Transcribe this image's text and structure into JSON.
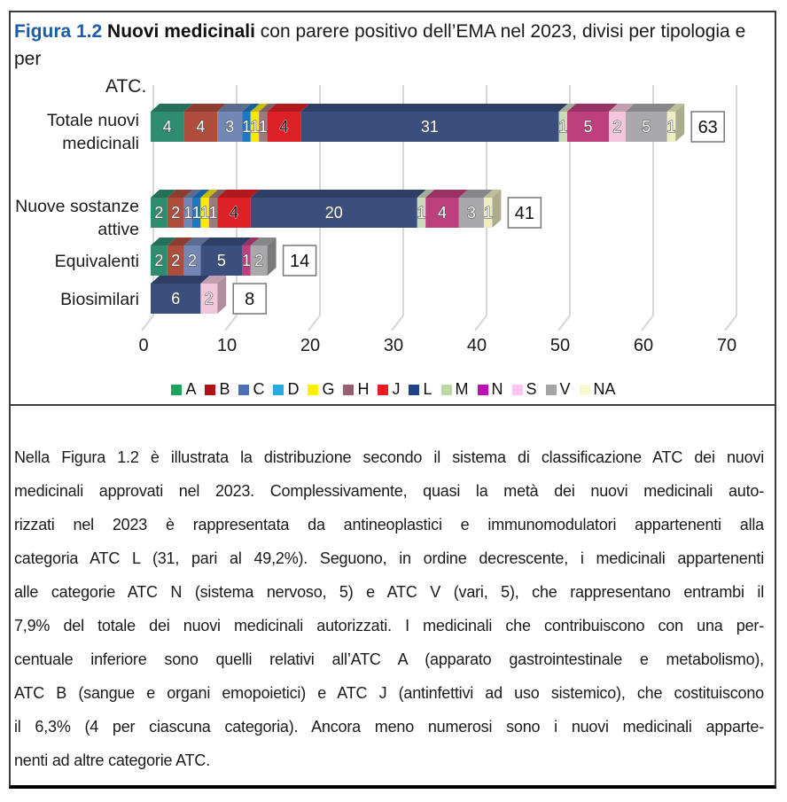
{
  "title": {
    "figure_label": "Figura 1.2",
    "accent_color": "#1A5CA7",
    "bold_text": "Nuovi medicinali",
    "rest_line1": "con parere positivo dell’EMA nel 2023, divisi per tipologia e per",
    "line2": "ATC."
  },
  "chart_data": {
    "type": "bar",
    "orientation": "horizontal",
    "stacked": true,
    "style": "3d",
    "title": "Nuovi medicinali con parere positivo dell’EMA nel 2023, divisi per tipologia e per ATC",
    "xlabel": "",
    "ylabel": "",
    "grid": true,
    "legend_position": "bottom",
    "x_axis": {
      "min": 0,
      "max": 70,
      "ticks": [
        0,
        10,
        20,
        30,
        40,
        50,
        60,
        70
      ]
    },
    "series": [
      {
        "code": "A",
        "bar_color": "#2E8C70",
        "legend_color": "#1FA358"
      },
      {
        "code": "B",
        "bar_color": "#AF4C3C",
        "legend_color": "#B01117"
      },
      {
        "code": "C",
        "bar_color": "#7287B4",
        "legend_color": "#4A71B6"
      },
      {
        "code": "D",
        "bar_color": "#1B78C2",
        "legend_color": "#26AAE1"
      },
      {
        "code": "G",
        "bar_color": "#FCE803",
        "legend_color": "#FEEF00"
      },
      {
        "code": "H",
        "bar_color": "#9A7B7E",
        "legend_color": "#985F70"
      },
      {
        "code": "J",
        "bar_color": "#DC2127",
        "legend_color": "#EC1C24",
        "number_style": "dark"
      },
      {
        "code": "L",
        "bar_color": "#3A4F7E",
        "legend_color": "#1E4389"
      },
      {
        "code": "M",
        "bar_color": "#CBDAB9",
        "legend_color": "#BCD6A4"
      },
      {
        "code": "N",
        "bar_color": "#BE3F7D",
        "legend_color": "#BF0DB7"
      },
      {
        "code": "S",
        "bar_color": "#F3C7DB",
        "legend_color": "#FBC5F3"
      },
      {
        "code": "V",
        "bar_color": "#A9A9AB",
        "legend_color": "#A2A4A7"
      },
      {
        "code": "NA",
        "bar_color": "#EFEEC3",
        "legend_color": "#FAF8CE"
      }
    ],
    "rows": [
      {
        "label": "Totale nuovi medicinali",
        "label_lines": [
          "Totale nuovi",
          "medicinali"
        ],
        "total": 63,
        "segments": [
          {
            "code": "A",
            "value": 4
          },
          {
            "code": "B",
            "value": 4
          },
          {
            "code": "C",
            "value": 3
          },
          {
            "code": "D",
            "value": 1
          },
          {
            "code": "G",
            "value": 1
          },
          {
            "code": "H",
            "value": 1
          },
          {
            "code": "J",
            "value": 4
          },
          {
            "code": "L",
            "value": 31
          },
          {
            "code": "M",
            "value": 1
          },
          {
            "code": "N",
            "value": 5
          },
          {
            "code": "S",
            "value": 2
          },
          {
            "code": "V",
            "value": 5
          },
          {
            "code": "NA",
            "value": 1
          }
        ]
      },
      {
        "label": "Nuove sostanze attive",
        "label_lines": [
          "Nuove sostanze",
          "attive"
        ],
        "total": 41,
        "segments": [
          {
            "code": "A",
            "value": 2
          },
          {
            "code": "B",
            "value": 2
          },
          {
            "code": "C",
            "value": 1
          },
          {
            "code": "D",
            "value": 1
          },
          {
            "code": "G",
            "value": 1
          },
          {
            "code": "H",
            "value": 1
          },
          {
            "code": "J",
            "value": 4
          },
          {
            "code": "L",
            "value": 20
          },
          {
            "code": "M",
            "value": 1
          },
          {
            "code": "N",
            "value": 4
          },
          {
            "code": "V",
            "value": 3
          },
          {
            "code": "NA",
            "value": 1
          }
        ]
      },
      {
        "label": "Equivalenti",
        "label_lines": [
          "Equivalenti"
        ],
        "total": 14,
        "segments": [
          {
            "code": "A",
            "value": 2
          },
          {
            "code": "B",
            "value": 2
          },
          {
            "code": "C",
            "value": 2
          },
          {
            "code": "L",
            "value": 5
          },
          {
            "code": "N",
            "value": 1
          },
          {
            "code": "V",
            "value": 2
          }
        ]
      },
      {
        "label": "Biosimilari",
        "label_lines": [
          "Biosimilari"
        ],
        "total": 8,
        "segments": [
          {
            "code": "L",
            "value": 6
          },
          {
            "code": "S",
            "value": 2
          }
        ]
      }
    ]
  },
  "body": {
    "lines": [
      "Nella Figura 1.2 è illustrata la distribuzione secondo il sistema di classificazione ATC dei nuovi",
      "medicinali approvati nel 2023. Complessivamente, quasi la metà dei nuovi medicinali auto-",
      "rizzati nel 2023 è rappresentata da antineoplastici e immunomodulatori appartenenti alla",
      "categoria ATC L (31, pari al 49,2%). Seguono, in ordine decrescente, i medicinali appartenenti",
      "alle categorie ATC N (sistema nervoso, 5) e ATC V (vari, 5), che rappresentano entrambi il",
      "7,9% del totale dei nuovi medicinali autorizzati. I medicinali che contribuiscono con una per-",
      "centuale inferiore sono quelli relativi all’ATC A (apparato gastrointestinale e metabolismo),",
      "ATC B (sangue e organi emopoietici) e ATC J (antinfettivi ad uso sistemico), che costituiscono",
      "il 6,3% (4 per ciascuna categoria). Ancora meno numerosi sono i nuovi medicinali apparte-",
      "nenti ad altre categorie ATC."
    ]
  }
}
